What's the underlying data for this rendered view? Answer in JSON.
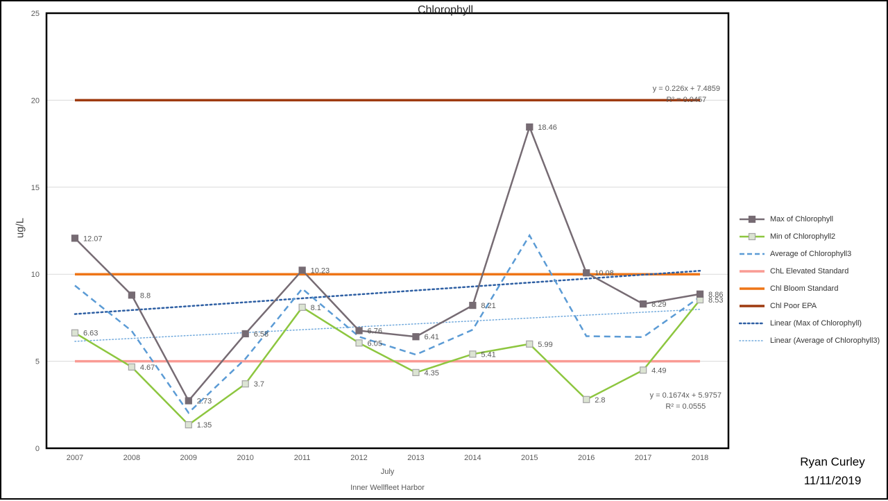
{
  "title": "Chlorophyll",
  "author": {
    "name": "Ryan Curley",
    "date": "11/11/2019"
  },
  "chart_data": {
    "type": "line",
    "title": "Chlorophyll",
    "ylabel": "ug/L",
    "xlabel_primary": "July",
    "xlabel_secondary": "Inner Wellfleet Harbor",
    "ylim": [
      0,
      25
    ],
    "yticks": [
      0,
      5,
      10,
      15,
      20,
      25
    ],
    "grid": true,
    "legend_position": "right",
    "categories": [
      "2007",
      "2008",
      "2009",
      "2010",
      "2011",
      "2012",
      "2013",
      "2014",
      "2015",
      "2016",
      "2017",
      "2018"
    ],
    "series": [
      {
        "name": "Max of Chlorophyll",
        "style": "line-marker",
        "color": "#766B73",
        "marker_fill": "#766B73",
        "marker_stroke": "#766B73",
        "show_labels": true,
        "values": [
          12.07,
          8.8,
          2.73,
          6.58,
          10.23,
          6.76,
          6.41,
          8.21,
          18.46,
          10.08,
          8.29,
          8.86
        ]
      },
      {
        "name": "Min of Chlorophyll2",
        "style": "line-marker",
        "color": "#8DC63F",
        "marker_fill": "#DCE4D3",
        "marker_stroke": "#A6A6A6",
        "show_labels": true,
        "values": [
          6.63,
          4.67,
          1.35,
          3.7,
          8.1,
          6.05,
          4.35,
          5.41,
          5.99,
          2.8,
          4.49,
          8.53
        ]
      },
      {
        "name": "Average of Chlorophyll3",
        "style": "dashed",
        "color": "#5B9BD5",
        "show_labels": false,
        "estimated": true,
        "values": [
          9.35,
          6.74,
          2.04,
          5.14,
          9.17,
          6.41,
          5.38,
          6.81,
          12.23,
          6.44,
          6.39,
          8.7
        ]
      },
      {
        "name": "ChL Elevated Standard",
        "style": "flat",
        "color": "#F99B94",
        "value": 5
      },
      {
        "name": "Chl Bloom Standard",
        "style": "flat",
        "color": "#EE7517",
        "value": 10
      },
      {
        "name": "Chl Poor EPA",
        "style": "flat",
        "color": "#9E3A0F",
        "value": 20
      }
    ],
    "trendlines": [
      {
        "name": "Linear (Max of Chlorophyll)",
        "color": "#2E5FA3",
        "slope": 0.226,
        "intercept": 7.4859,
        "equation": "y = 0.226x + 7.4859",
        "r2": "R² = 0.0457",
        "dot": "large"
      },
      {
        "name": "Linear (Average of Chlorophyll3)",
        "color": "#6FA8DC",
        "slope": 0.1674,
        "intercept": 5.9757,
        "equation": "y = 0.1674x + 5.9757",
        "r2": "R² = 0.0555",
        "dot": "small"
      }
    ],
    "legend": [
      {
        "label": "Max of Chlorophyll",
        "style": "line-marker",
        "color": "#766B73",
        "marker_fill": "#766B73",
        "marker_stroke": "#766B73"
      },
      {
        "label": "Min of Chlorophyll2",
        "style": "line-marker",
        "color": "#8DC63F",
        "marker_fill": "#DCE4D3",
        "marker_stroke": "#A6A6A6"
      },
      {
        "label": "Average of Chlorophyll3",
        "style": "dashed",
        "color": "#5B9BD5"
      },
      {
        "label": "ChL Elevated Standard",
        "style": "solid",
        "color": "#F99B94"
      },
      {
        "label": "Chl Bloom Standard",
        "style": "solid",
        "color": "#EE7517"
      },
      {
        "label": "Chl Poor EPA",
        "style": "solid",
        "color": "#9E3A0F"
      },
      {
        "label": "Linear (Max of Chlorophyll)",
        "style": "dotted-large",
        "color": "#2E5FA3"
      },
      {
        "label": "Linear (Average of Chlorophyll3)",
        "style": "dotted-small",
        "color": "#6FA8DC"
      }
    ],
    "axis_text_color": "#595959",
    "gridline_color": "#D9D9D9",
    "plot_border_color": "#000000"
  }
}
